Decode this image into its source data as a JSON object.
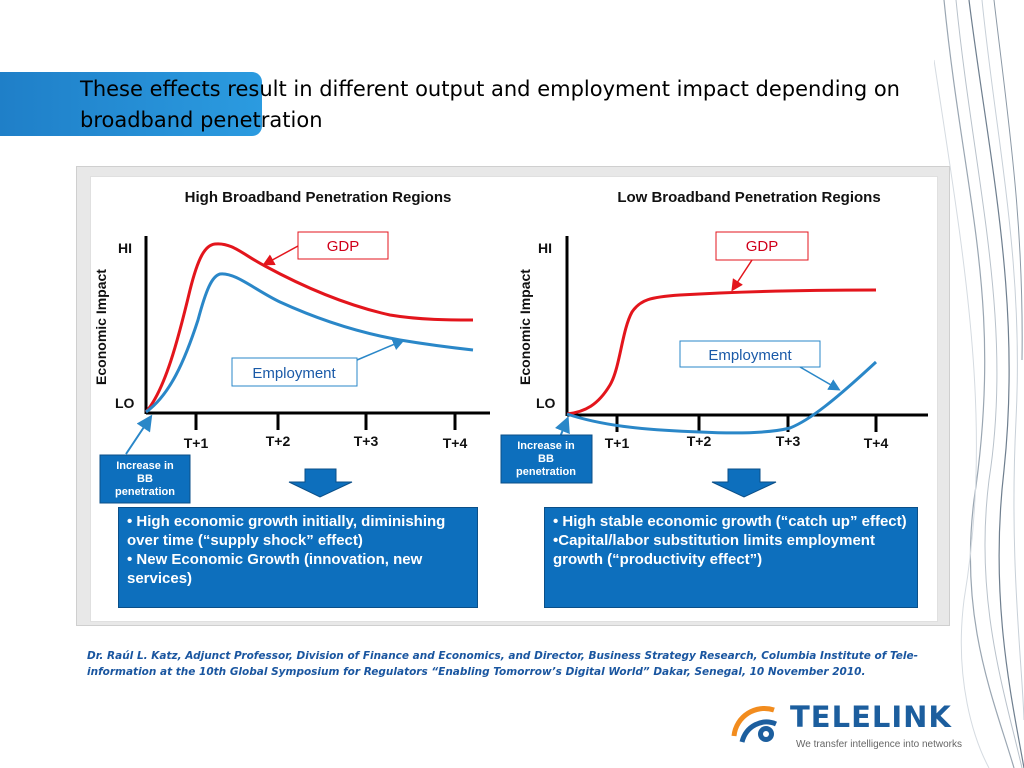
{
  "slide": {
    "title": "These effects result in different output and employment impact depending on broadband penetration"
  },
  "left": {
    "heading": "High Broadband Penetration Regions",
    "y_label": "Economic Impact",
    "hi": "HI",
    "lo": "LO",
    "ticks": [
      "T+1",
      "T+2",
      "T+3",
      "T+4"
    ],
    "gdp_label": "GDP",
    "employment_label": "Employment",
    "increase_label": [
      "Increase in",
      "BB",
      "penetration"
    ],
    "bullets": [
      "• High economic growth initially, diminishing over time (“supply shock” effect)",
      "• New Economic Growth (innovation, new services)"
    ]
  },
  "right": {
    "heading": "Low Broadband Penetration Regions",
    "y_label": "Economic Impact",
    "hi": "HI",
    "lo": "LO",
    "ticks": [
      "T+1",
      "T+2",
      "T+3",
      "T+4"
    ],
    "gdp_label": "GDP",
    "employment_label": "Employment",
    "increase_label": [
      "Increase in",
      "BB",
      "penetration"
    ],
    "bullets": [
      "• High stable economic growth (“catch up” effect)",
      "•Capital/labor substitution limits employment growth (“productivity effect”)"
    ]
  },
  "citation": "Dr. Raúl L. Katz, Adjunct Professor, Division of Finance and Economics, and Director, Business Strategy Research, Columbia Institute of Tele-information at the 10th Global Symposium for Regulators “Enabling Tomorrow’s Digital World” Dakar, Senegal, 10 November 2010.",
  "logo": {
    "name": "TELELINK",
    "tagline": "We transfer intelligence into networks"
  },
  "colors": {
    "gdp": "#e3151c",
    "employment": "#2a87c8",
    "accent": "#0d6fbd"
  },
  "icons": [
    "down-arrow-icon",
    "telelink-logo-icon"
  ]
}
